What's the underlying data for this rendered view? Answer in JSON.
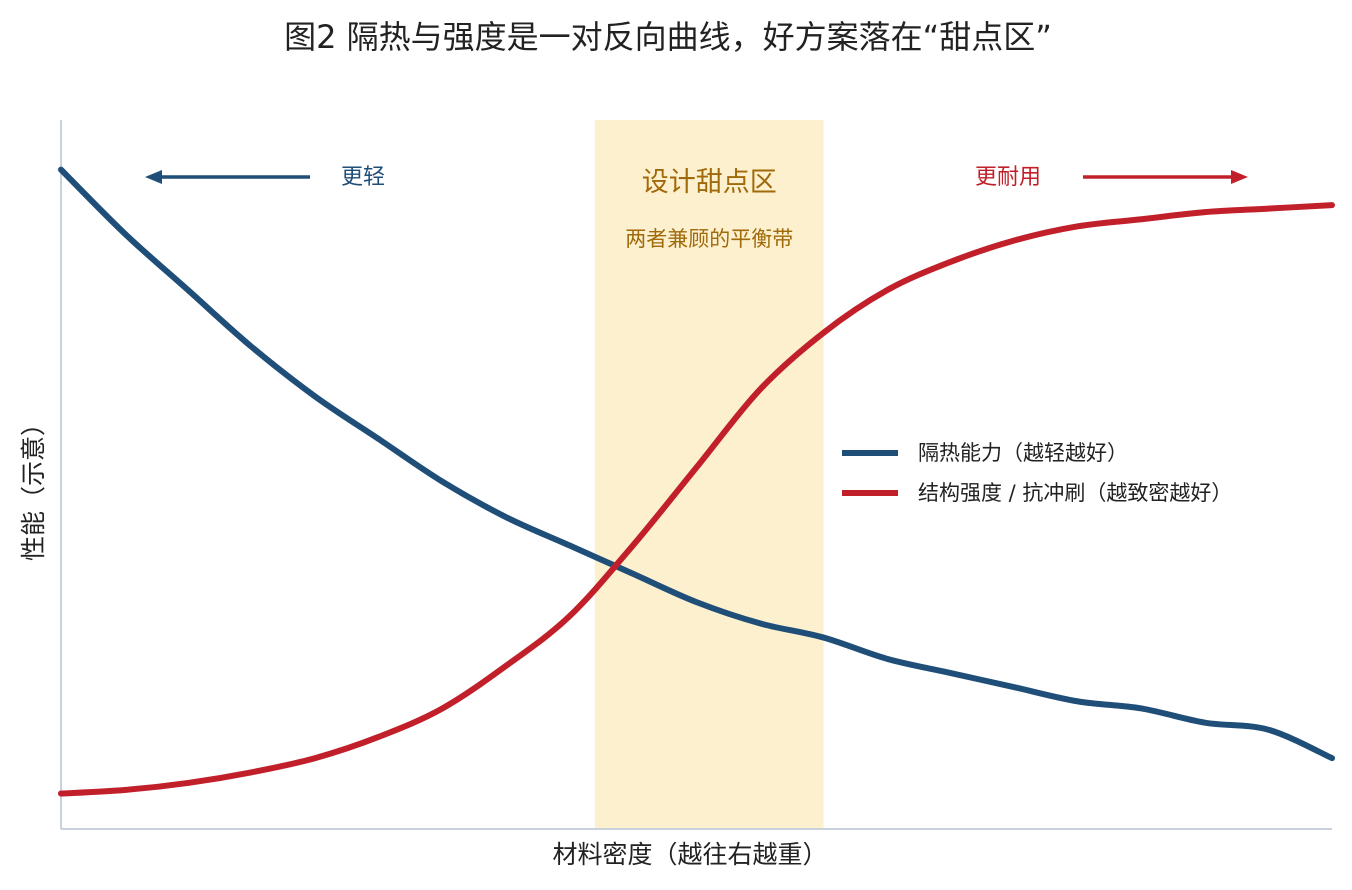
{
  "chart_data": {
    "type": "line",
    "title": "图2  隔热与强度是一对反向曲线，好方案落在“甜点区”",
    "xlabel": "材料密度（越往右越重）",
    "ylabel": "性能（示意）",
    "xlim": [
      0,
      1
    ],
    "ylim": [
      0,
      1
    ],
    "grid": false,
    "legend_position": "right-center",
    "sweet_spot": {
      "range": [
        0.42,
        0.6
      ],
      "title": "设计甜点区",
      "subtitle": "两者兼顾的平衡带",
      "color": "#FDF0CF",
      "text_color": "#A06A0A"
    },
    "annotations": {
      "left": {
        "text": "更轻",
        "direction": "left",
        "color": "#1F4E79"
      },
      "right": {
        "text": "更耐用",
        "direction": "right",
        "color": "#C1202A"
      }
    },
    "series": [
      {
        "name": "隔热能力（越轻越好）",
        "color": "#1F4E79",
        "x": [
          0.0,
          0.05,
          0.1,
          0.15,
          0.2,
          0.25,
          0.3,
          0.35,
          0.4,
          0.45,
          0.5,
          0.55,
          0.6,
          0.65,
          0.7,
          0.75,
          0.8,
          0.85,
          0.9,
          0.95,
          1.0
        ],
        "values": [
          0.93,
          0.84,
          0.76,
          0.68,
          0.61,
          0.55,
          0.49,
          0.44,
          0.4,
          0.36,
          0.32,
          0.29,
          0.27,
          0.24,
          0.22,
          0.2,
          0.18,
          0.17,
          0.15,
          0.14,
          0.1
        ]
      },
      {
        "name": "结构强度 / 抗冲刷（越致密越好）",
        "color": "#C1202A",
        "x": [
          0.0,
          0.05,
          0.1,
          0.15,
          0.2,
          0.25,
          0.3,
          0.35,
          0.4,
          0.45,
          0.5,
          0.55,
          0.6,
          0.65,
          0.7,
          0.75,
          0.8,
          0.85,
          0.9,
          0.95,
          1.0
        ],
        "values": [
          0.05,
          0.055,
          0.065,
          0.08,
          0.1,
          0.13,
          0.17,
          0.23,
          0.3,
          0.4,
          0.51,
          0.62,
          0.7,
          0.76,
          0.8,
          0.83,
          0.85,
          0.86,
          0.87,
          0.875,
          0.88
        ]
      }
    ]
  }
}
